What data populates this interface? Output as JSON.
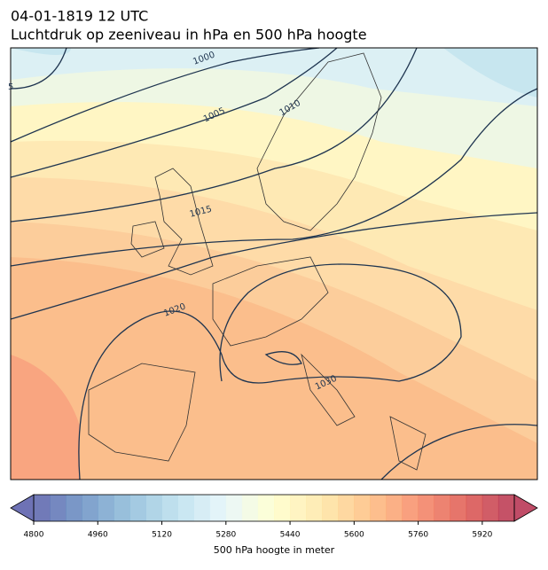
{
  "header": {
    "title": "04-01-1819 12 UTC",
    "subtitle": "Luchtdruk op zeeniveau in hPa en 500 hPa hoogte"
  },
  "map": {
    "contour_labels": [
      "1000",
      "1005",
      "1010",
      "1015",
      "1020",
      "1030",
      "5"
    ]
  },
  "colorbar": {
    "label": "500 hPa hoogte in meter",
    "range": [
      4800,
      6000
    ],
    "step": 40,
    "ticks": [
      4800,
      4960,
      5120,
      5280,
      5440,
      5600,
      5760,
      5920
    ],
    "colors": [
      "#313695",
      "#4575b4",
      "#74add1",
      "#abd9e9",
      "#e0f3f8",
      "#ffffbf",
      "#fee090",
      "#fdae61",
      "#f46d43",
      "#d73027",
      "#a50026"
    ],
    "opacity": 0.7
  }
}
